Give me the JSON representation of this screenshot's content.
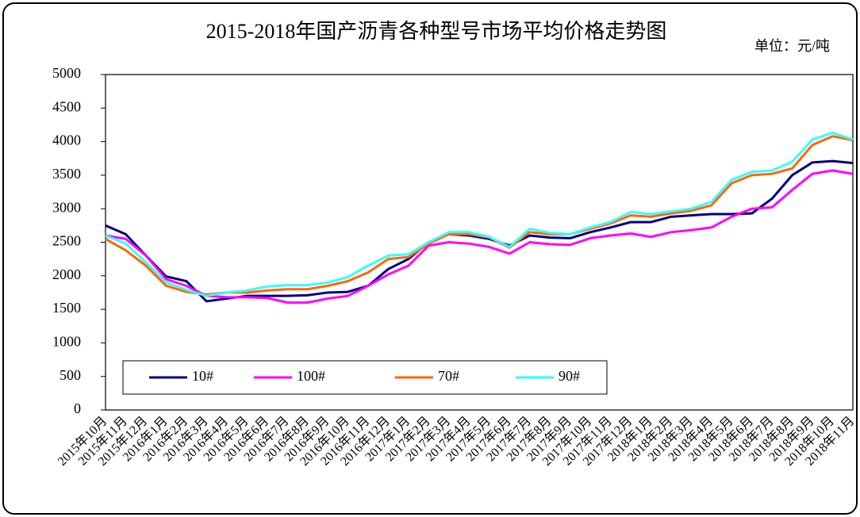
{
  "chart_data": {
    "type": "line",
    "title": "2015-2018年国产沥青各种型号市场平均价格走势图",
    "unit_label": "单位：元/吨",
    "categories": [
      "2015年10月",
      "2015年11月",
      "2015年12月",
      "2016年1月",
      "2016年2月",
      "2016年3月",
      "2016年4月",
      "2016年5月",
      "2016年6月",
      "2016年7月",
      "2016年8月",
      "2016年9月",
      "2016年10月",
      "2016年11月",
      "2016年12月",
      "2017年1月",
      "2017年2月",
      "2017年3月",
      "2017年4月",
      "2017年5月",
      "2017年6月",
      "2017年7月",
      "2017年8月",
      "2017年9月",
      "2017年10月",
      "2017年11月",
      "2017年12月",
      "2018年1月",
      "2018年2月",
      "2018年3月",
      "2018年4月",
      "2018年5月",
      "2018年6月",
      "2018年7月",
      "2018年8月",
      "2018年9月",
      "2018年10月",
      "2018年11月"
    ],
    "series": [
      {
        "name": "10#",
        "color": "#000080",
        "values": [
          2750,
          2620,
          2300,
          1990,
          1920,
          1620,
          1660,
          1700,
          1700,
          1700,
          1710,
          1750,
          1760,
          1850,
          2100,
          2250,
          2500,
          2620,
          2600,
          2550,
          2450,
          2600,
          2570,
          2560,
          2650,
          2720,
          2800,
          2800,
          2880,
          2900,
          2920,
          2920,
          2930,
          3150,
          3500,
          3690,
          3710,
          3680
        ]
      },
      {
        "name": "100#",
        "color": "#ff00ff",
        "values": [
          2600,
          2550,
          2300,
          1950,
          1850,
          1700,
          1680,
          1680,
          1670,
          1600,
          1600,
          1660,
          1700,
          1850,
          2020,
          2150,
          2450,
          2500,
          2480,
          2430,
          2330,
          2500,
          2470,
          2460,
          2560,
          2600,
          2630,
          2580,
          2650,
          2680,
          2720,
          2880,
          3000,
          3020,
          3280,
          3520,
          3570,
          3520
        ]
      },
      {
        "name": "70#",
        "color": "#ff6600",
        "values": [
          2550,
          2380,
          2150,
          1850,
          1760,
          1720,
          1750,
          1750,
          1780,
          1800,
          1800,
          1850,
          1920,
          2050,
          2250,
          2280,
          2480,
          2620,
          2620,
          2570,
          2420,
          2650,
          2620,
          2620,
          2700,
          2780,
          2900,
          2880,
          2930,
          2970,
          3050,
          3380,
          3500,
          3520,
          3600,
          3950,
          4080,
          4020
        ]
      },
      {
        "name": "90#",
        "color": "#33ffff",
        "values": [
          2600,
          2480,
          2200,
          1900,
          1790,
          1700,
          1750,
          1780,
          1840,
          1860,
          1860,
          1900,
          1980,
          2150,
          2300,
          2320,
          2500,
          2650,
          2650,
          2580,
          2430,
          2700,
          2640,
          2620,
          2720,
          2800,
          2950,
          2920,
          2960,
          3000,
          3100,
          3430,
          3550,
          3570,
          3700,
          4030,
          4130,
          4030
        ]
      }
    ],
    "ylim": [
      0,
      5000
    ],
    "yticks": [
      0,
      500,
      1000,
      1500,
      2000,
      2500,
      3000,
      3500,
      4000,
      4500,
      5000
    ],
    "legend": "lower left",
    "grid": false
  }
}
